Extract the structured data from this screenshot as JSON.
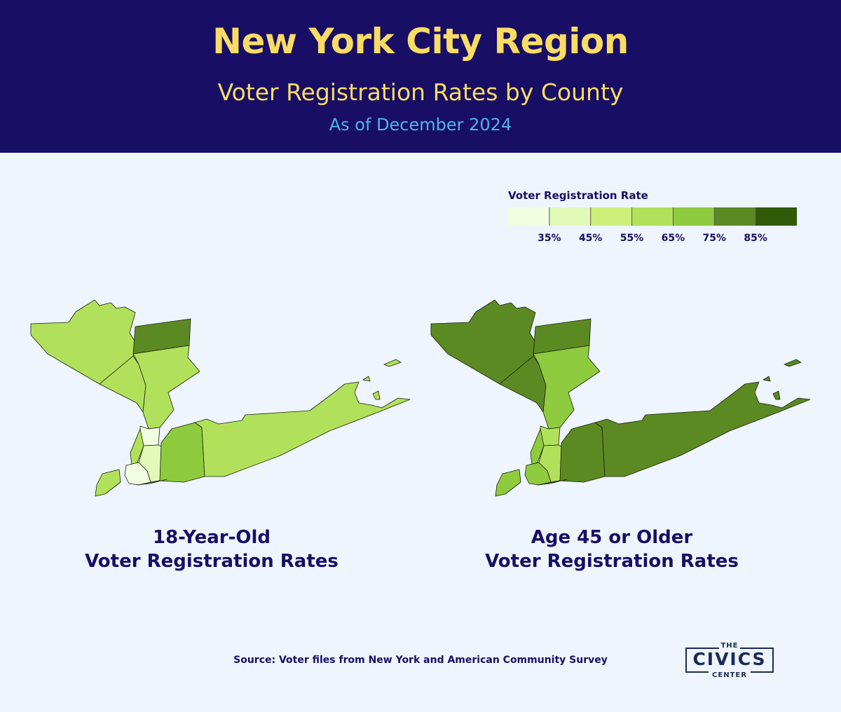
{
  "header": {
    "title": "New York City Region",
    "subtitle": "Voter Registration Rates by County",
    "date": "As of December 2024"
  },
  "legend": {
    "title": "Voter Registration Rate",
    "colors": [
      "#f2fde0",
      "#e2f9b8",
      "#cdf07a",
      "#b1e15a",
      "#8ecb3e",
      "#5b8a22",
      "#2f5a08"
    ],
    "thresholds": [
      "35%",
      "45%",
      "55%",
      "65%",
      "75%",
      "85%"
    ]
  },
  "maps": [
    {
      "caption_line1": "18-Year-Old",
      "caption_line2": "Voter Registration Rates",
      "fills": {
        "orange": "#b1e15a",
        "rockland": "#b1e15a",
        "putnam": "#5b8a22",
        "westchester": "#b1e15a",
        "bronx": "#f2fde0",
        "manhattan": "#b1e15a",
        "queens": "#e2f9b8",
        "brooklyn": "#f2fde0",
        "staten_island": "#b1e15a",
        "nassau": "#8ecb3e",
        "suffolk": "#b1e15a"
      }
    },
    {
      "caption_line1": "Age 45 or Older",
      "caption_line2": "Voter Registration Rates",
      "fills": {
        "orange": "#5b8a22",
        "rockland": "#5b8a22",
        "putnam": "#5b8a22",
        "westchester": "#8ecb3e",
        "bronx": "#b1e15a",
        "manhattan": "#8ecb3e",
        "queens": "#b1e15a",
        "brooklyn": "#8ecb3e",
        "staten_island": "#8ecb3e",
        "nassau": "#5b8a22",
        "suffolk": "#5b8a22"
      }
    }
  ],
  "source": "Source: Voter files from New York and American Community Survey",
  "logo": {
    "top": "THE",
    "main": "CIVICS",
    "bottom": "CENTER"
  }
}
